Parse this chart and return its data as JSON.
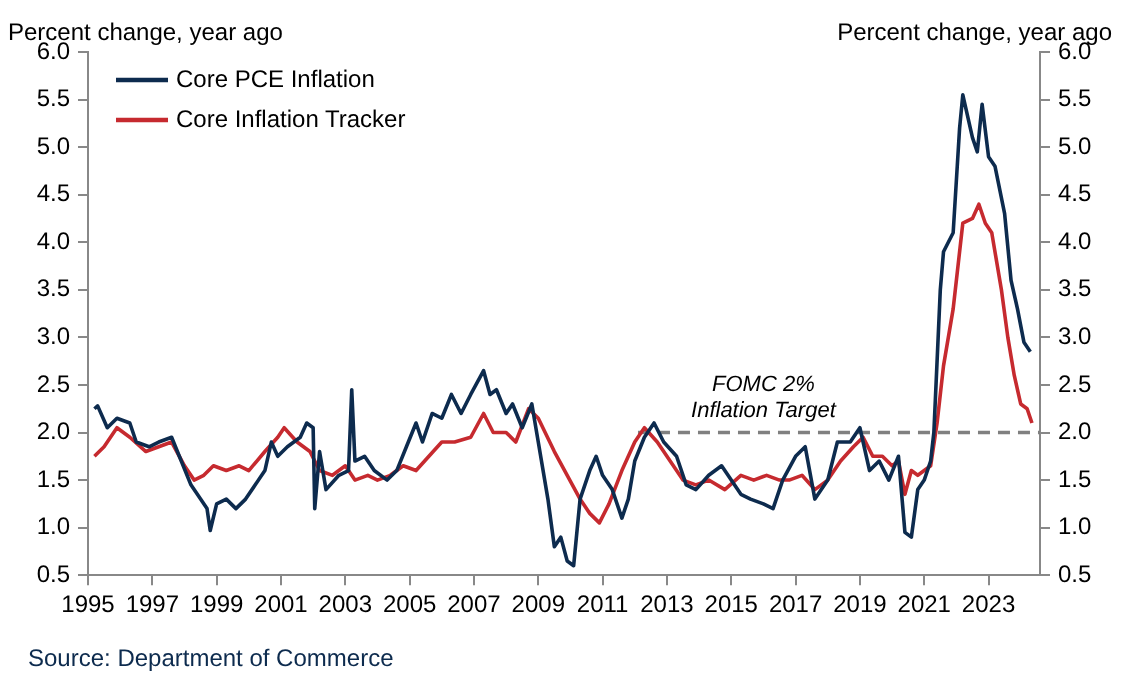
{
  "chart_data": {
    "type": "line",
    "ylabel": "Percent change, year ago",
    "y2label": "Percent change, year ago",
    "annotations": [
      "Source: Department of Commerce",
      {
        "text": "FOMC 2%\nInflation Target",
        "x": 2016,
        "y": 2
      }
    ],
    "xlim": [
      1995,
      2024.6
    ],
    "xticks": [
      1995,
      1997,
      1999,
      2001,
      2003,
      2005,
      2007,
      2009,
      2011,
      2013,
      2015,
      2017,
      2019,
      2021,
      2023
    ],
    "ylim": [
      0.5,
      6
    ],
    "yticks": [
      {
        "value": 0.5,
        "label": "0.5"
      },
      {
        "value": 1,
        "label": "1.0"
      },
      {
        "value": 1.5,
        "label": "1.5"
      },
      {
        "value": 2,
        "label": "2.0"
      },
      {
        "value": 2.5,
        "label": "2.5"
      },
      {
        "value": 3,
        "label": "3.0"
      },
      {
        "value": 3.5,
        "label": "3.5"
      },
      {
        "value": 4,
        "label": "4.0"
      },
      {
        "value": 4.5,
        "label": "4.5"
      },
      {
        "value": 5,
        "label": "5.0"
      },
      {
        "value": 5.5,
        "label": "5.5"
      },
      {
        "value": 6,
        "label": "6.0"
      }
    ],
    "y2lim": [
      0.5,
      6
    ],
    "y2ticks": [
      {
        "value": 0.5,
        "label": "0.5"
      },
      {
        "value": 1,
        "label": "1.0"
      },
      {
        "value": 1.5,
        "label": "1.5"
      },
      {
        "value": 2,
        "label": "2.0"
      },
      {
        "value": 2.5,
        "label": "2.5"
      },
      {
        "value": 3,
        "label": "3.0"
      },
      {
        "value": 3.5,
        "label": "3.5"
      },
      {
        "value": 4,
        "label": "4.0"
      },
      {
        "value": 4.5,
        "label": "4.5"
      },
      {
        "value": 5,
        "label": "5.0"
      },
      {
        "value": 5.5,
        "label": "5.5"
      },
      {
        "value": 6,
        "label": "6.0"
      }
    ],
    "grid": false,
    "legend": "top left",
    "marker": "none",
    "line_style": "solid",
    "series": [
      {
        "name": "Core PCE Inflation",
        "color": "#0d2b4e",
        "x": [
          1995.2,
          1995.3,
          1995.6,
          1995.9,
          1996.3,
          1996.5,
          1996.9,
          1997.2,
          1997.6,
          1997.9,
          1998.2,
          1998.5,
          1998.7,
          1998.8,
          1999.0,
          1999.3,
          1999.6,
          1999.9,
          2000.2,
          2000.5,
          2000.7,
          2000.9,
          2001.2,
          2001.6,
          2001.8,
          2002.0,
          2002.05,
          2002.2,
          2002.4,
          2002.8,
          2003.1,
          2003.2,
          2003.3,
          2003.6,
          2003.9,
          2004.3,
          2004.6,
          2004.9,
          2005.2,
          2005.4,
          2005.7,
          2006.0,
          2006.3,
          2006.6,
          2006.9,
          2007.3,
          2007.5,
          2007.7,
          2008.0,
          2008.2,
          2008.5,
          2008.8,
          2009.0,
          2009.3,
          2009.5,
          2009.7,
          2009.9,
          2010.1,
          2010.3,
          2010.6,
          2010.8,
          2011.0,
          2011.3,
          2011.6,
          2011.8,
          2012.0,
          2012.3,
          2012.6,
          2012.9,
          2013.3,
          2013.6,
          2013.9,
          2014.3,
          2014.7,
          2015.0,
          2015.3,
          2015.6,
          2016.0,
          2016.3,
          2016.6,
          2017.0,
          2017.3,
          2017.6,
          2018.0,
          2018.3,
          2018.7,
          2019.0,
          2019.3,
          2019.6,
          2019.9,
          2020.2,
          2020.4,
          2020.6,
          2020.8,
          2021.0,
          2021.2,
          2021.3,
          2021.5,
          2021.6,
          2021.9,
          2022.1,
          2022.2,
          2022.5,
          2022.65,
          2022.8,
          2023.0,
          2023.2,
          2023.5,
          2023.7,
          2023.9,
          2024.1,
          2024.3
        ],
        "values": [
          2.25,
          2.28,
          2.05,
          2.15,
          2.1,
          1.9,
          1.85,
          1.9,
          1.95,
          1.7,
          1.45,
          1.3,
          1.2,
          0.97,
          1.25,
          1.3,
          1.2,
          1.3,
          1.45,
          1.6,
          1.9,
          1.75,
          1.85,
          1.95,
          2.1,
          2.05,
          1.2,
          1.8,
          1.4,
          1.55,
          1.6,
          2.45,
          1.7,
          1.75,
          1.6,
          1.5,
          1.6,
          1.85,
          2.1,
          1.9,
          2.2,
          2.15,
          2.4,
          2.2,
          2.4,
          2.65,
          2.4,
          2.45,
          2.2,
          2.3,
          2.05,
          2.3,
          1.9,
          1.3,
          0.8,
          0.9,
          0.65,
          0.6,
          1.3,
          1.6,
          1.75,
          1.55,
          1.4,
          1.1,
          1.3,
          1.7,
          1.95,
          2.1,
          1.9,
          1.75,
          1.45,
          1.4,
          1.55,
          1.65,
          1.5,
          1.35,
          1.3,
          1.25,
          1.2,
          1.5,
          1.75,
          1.85,
          1.3,
          1.5,
          1.9,
          1.9,
          2.05,
          1.6,
          1.7,
          1.5,
          1.75,
          0.95,
          0.9,
          1.4,
          1.5,
          1.7,
          2.0,
          3.5,
          3.9,
          4.1,
          5.2,
          5.55,
          5.1,
          4.95,
          5.45,
          4.9,
          4.8,
          4.3,
          3.6,
          3.3,
          2.95,
          2.85
        ]
      },
      {
        "name": "Core Inflation Tracker",
        "color": "#c62a2f",
        "x": [
          1995.2,
          1995.5,
          1995.9,
          1996.3,
          1996.8,
          1997.2,
          1997.6,
          1998.0,
          1998.3,
          1998.6,
          1998.9,
          1999.3,
          1999.7,
          2000.0,
          2000.5,
          2000.9,
          2001.1,
          2001.5,
          2001.9,
          2002.2,
          2002.6,
          2003.0,
          2003.3,
          2003.7,
          2004.0,
          2004.4,
          2004.8,
          2005.2,
          2005.6,
          2006.0,
          2006.4,
          2006.9,
          2007.3,
          2007.6,
          2008.0,
          2008.3,
          2008.7,
          2009.0,
          2009.5,
          2009.9,
          2010.3,
          2010.6,
          2010.9,
          2011.2,
          2011.6,
          2012.0,
          2012.3,
          2012.7,
          2013.1,
          2013.5,
          2013.9,
          2014.3,
          2014.8,
          2015.3,
          2015.7,
          2016.1,
          2016.5,
          2016.8,
          2017.2,
          2017.6,
          2018.0,
          2018.4,
          2018.8,
          2019.1,
          2019.4,
          2019.7,
          2020.0,
          2020.2,
          2020.4,
          2020.6,
          2020.8,
          2021.0,
          2021.2,
          2021.4,
          2021.6,
          2021.9,
          2022.1,
          2022.2,
          2022.5,
          2022.7,
          2022.9,
          2023.1,
          2023.4,
          2023.6,
          2023.8,
          2024.0,
          2024.2,
          2024.35
        ],
        "values": [
          1.75,
          1.85,
          2.05,
          1.95,
          1.8,
          1.85,
          1.9,
          1.65,
          1.5,
          1.55,
          1.65,
          1.6,
          1.65,
          1.6,
          1.8,
          1.95,
          2.05,
          1.9,
          1.8,
          1.6,
          1.55,
          1.65,
          1.5,
          1.55,
          1.5,
          1.55,
          1.65,
          1.6,
          1.75,
          1.9,
          1.9,
          1.95,
          2.2,
          2.0,
          2.0,
          1.9,
          2.25,
          2.15,
          1.8,
          1.55,
          1.3,
          1.15,
          1.05,
          1.25,
          1.6,
          1.9,
          2.05,
          1.9,
          1.7,
          1.5,
          1.45,
          1.5,
          1.4,
          1.55,
          1.5,
          1.55,
          1.5,
          1.5,
          1.55,
          1.4,
          1.5,
          1.7,
          1.85,
          1.95,
          1.75,
          1.75,
          1.65,
          1.7,
          1.35,
          1.6,
          1.55,
          1.6,
          1.65,
          2.1,
          2.7,
          3.3,
          3.9,
          4.2,
          4.25,
          4.4,
          4.2,
          4.1,
          3.5,
          3.0,
          2.6,
          2.3,
          2.25,
          2.1
        ]
      },
      {
        "type": "line",
        "line_style": "dashed",
        "color": "#808080",
        "x": [
          2012.1,
          2024.6
        ],
        "values": [
          2,
          2
        ]
      }
    ]
  }
}
